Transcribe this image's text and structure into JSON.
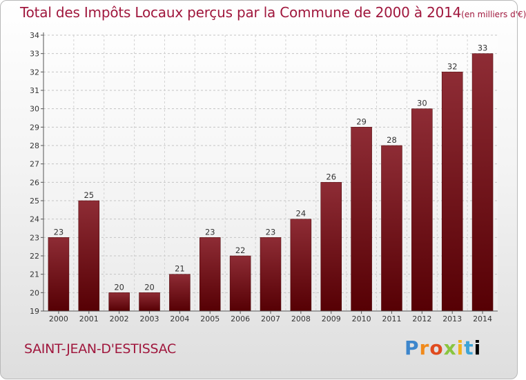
{
  "header": {
    "title": "Total des Impôts Locaux perçus par la Commune de 2000 à 2014",
    "unit": "(en milliers d'€)"
  },
  "footer": {
    "commune": "SAINT-JEAN-D'ESTISSAC",
    "logo_letters": [
      "P",
      "r",
      "o",
      "x",
      "i",
      "t",
      "i"
    ]
  },
  "colors": {
    "title": "#a0173d",
    "bar_dark": "#5a0006",
    "bar_light": "#8a2a33"
  },
  "chart_data": {
    "type": "bar",
    "title": "Total des Impôts Locaux perçus par la Commune de 2000 à 2014 (en milliers d'€)",
    "xlabel": "",
    "ylabel": "",
    "categories": [
      "2000",
      "2001",
      "2002",
      "2003",
      "2004",
      "2005",
      "2006",
      "2007",
      "2008",
      "2009",
      "2010",
      "2011",
      "2012",
      "2013",
      "2014"
    ],
    "values": [
      23,
      25,
      20,
      20,
      21,
      23,
      22,
      23,
      24,
      26,
      29,
      28,
      30,
      32,
      33
    ],
    "ylim": [
      19,
      34
    ],
    "yticks": [
      19,
      20,
      21,
      22,
      23,
      24,
      25,
      26,
      27,
      28,
      29,
      30,
      31,
      32,
      33,
      34
    ],
    "grid": true,
    "legend": "none"
  }
}
